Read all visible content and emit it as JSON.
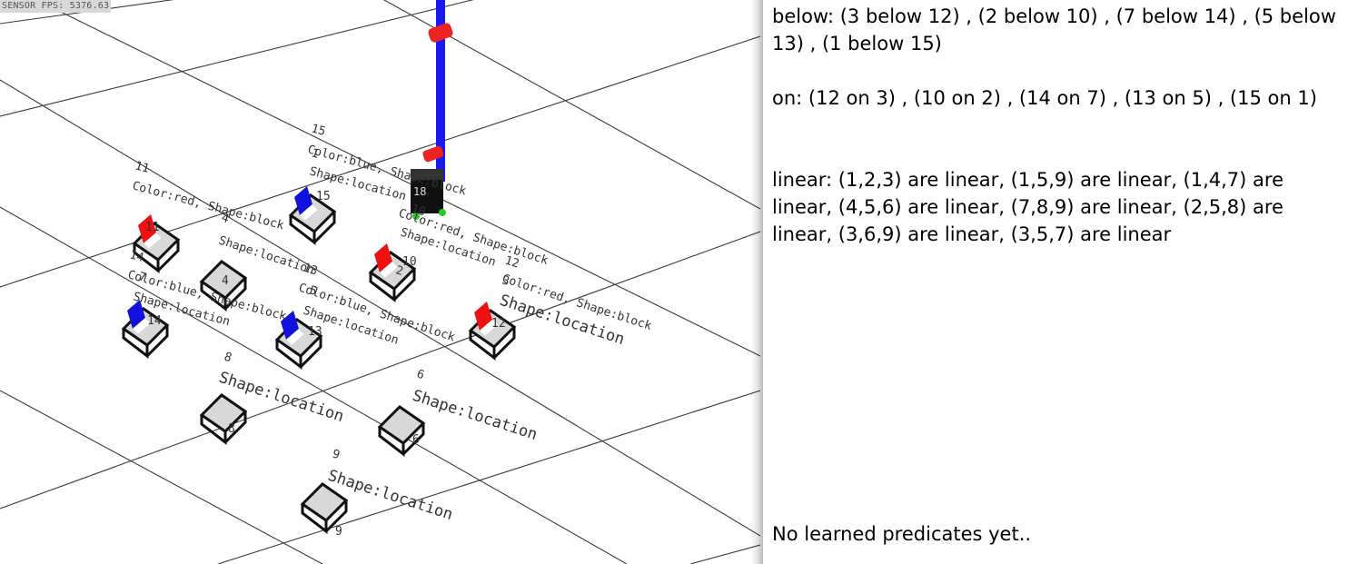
{
  "viewport": {
    "fps_text": "SENSOR FPS: 5376.63",
    "objects": [
      {
        "id": "15",
        "color_shape": "Color:blue, Shape:block",
        "location": "Shape:location",
        "marker": "15",
        "block_color": "blue"
      },
      {
        "id": "11",
        "color_shape": "Color:red, Shape:block",
        "marker": "11",
        "block_color": "red"
      },
      {
        "id": "4",
        "location": "Shape:location",
        "marker": "4"
      },
      {
        "id": "10",
        "color_shape": "Color:red, Shape:block",
        "location": "Shape:location",
        "marker": "10",
        "block_color": "red"
      },
      {
        "id": "12",
        "color_shape": "Color:red, Shape:block",
        "location": "Shape:location",
        "marker": "12",
        "block_color": "red"
      },
      {
        "id": "13",
        "color_shape": "Color:blue, Shape:block",
        "location": "Shape:location",
        "marker": "13",
        "block_color": "blue"
      },
      {
        "id": "14",
        "color_shape": "Color:blue, Shape:block",
        "location": "Shape:location",
        "marker": "14",
        "block_color": "blue"
      },
      {
        "id": "8",
        "location": "Shape:location",
        "marker": "8"
      },
      {
        "id": "6",
        "location": "Shape:location",
        "marker": "6"
      },
      {
        "id": "9",
        "location": "Shape:location",
        "marker": "9"
      }
    ],
    "extra_labels": [
      "5",
      "3",
      "2",
      "7",
      "1"
    ]
  },
  "predicates": {
    "below": "below: (3 below 12) , (2 below 10) , (7 below 14) , (5 below 13) , (1 below 15)",
    "on": "on: (12 on 3) , (10 on 2) , (14 on 7) , (13 on 5) , (15 on 1)",
    "linear": "linear: (1,2,3) are linear, (1,5,9) are linear, (1,4,7) are linear, (4,5,6) are linear, (7,8,9) are linear, (2,5,8) are linear, (3,6,9) are linear, (3,5,7) are linear",
    "learned_status": "No learned predicates yet.."
  },
  "colors": {
    "red_block": "#ee1111",
    "blue_block": "#1111dd",
    "arm": "#1a1aee",
    "arm_joint": "#ee2222",
    "grid": "#3a3a3a",
    "panel_bg": "#ffffff"
  }
}
